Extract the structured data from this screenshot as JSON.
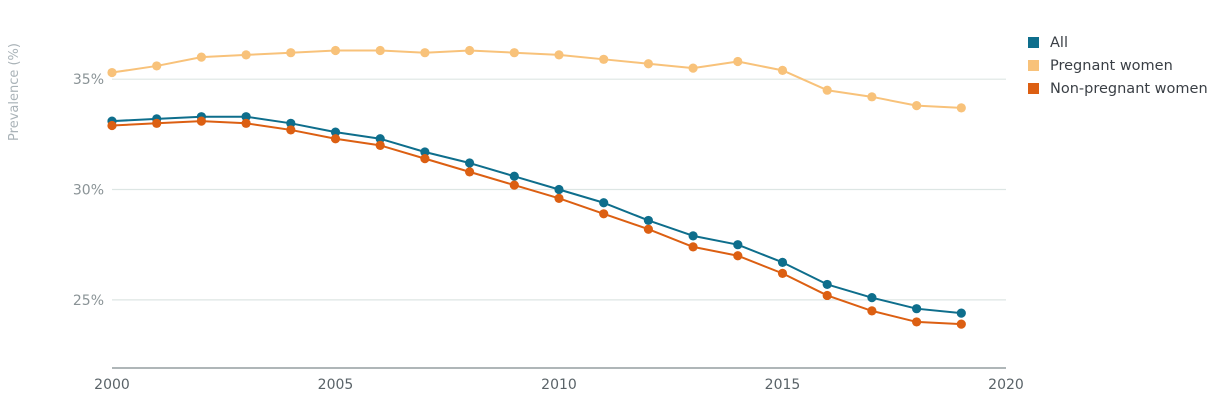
{
  "chart_data": {
    "type": "line",
    "ylabel": "Prevalence (%)",
    "xlim": [
      2000,
      2020
    ],
    "ylim": [
      23,
      37.5
    ],
    "x_ticks": [
      2000,
      2005,
      2010,
      2015,
      2020
    ],
    "x_tick_labels": [
      "2000",
      "2005",
      "2010",
      "2015",
      "2020"
    ],
    "y_ticks": [
      25,
      30,
      35
    ],
    "y_tick_labels": [
      "25%",
      "30%",
      "35%"
    ],
    "grid": "horizontal",
    "legend_position": "top-right",
    "x": [
      2000,
      2001,
      2002,
      2003,
      2004,
      2005,
      2006,
      2007,
      2008,
      2009,
      2010,
      2011,
      2012,
      2013,
      2014,
      2015,
      2016,
      2017,
      2018,
      2019
    ],
    "series": [
      {
        "name": "All",
        "color": "#0e6e8c",
        "values": [
          33.1,
          33.2,
          33.3,
          33.3,
          33.0,
          32.6,
          32.3,
          31.7,
          31.2,
          30.6,
          30.0,
          29.4,
          28.6,
          27.9,
          27.5,
          26.7,
          25.7,
          25.1,
          24.6,
          24.4
        ]
      },
      {
        "name": "Pregnant women",
        "color": "#f8c27a",
        "values": [
          35.3,
          35.6,
          36.0,
          36.1,
          36.2,
          36.3,
          36.3,
          36.2,
          36.3,
          36.2,
          36.1,
          35.9,
          35.7,
          35.5,
          35.8,
          35.4,
          34.5,
          34.2,
          33.8,
          33.7
        ]
      },
      {
        "name": "Non-pregnant women",
        "color": "#dc5f12",
        "values": [
          32.9,
          33.0,
          33.1,
          33.0,
          32.7,
          32.3,
          32.0,
          31.4,
          30.8,
          30.2,
          29.6,
          28.9,
          28.2,
          27.4,
          27.0,
          26.2,
          25.2,
          24.5,
          24.0,
          23.9
        ]
      }
    ]
  },
  "style": {
    "grid_color": "#dde6e4",
    "axis_color": "#7f8a8e",
    "tick_label_color": "#8a9396",
    "ylabel_color": "#aab3b8",
    "line_width": 2
  }
}
